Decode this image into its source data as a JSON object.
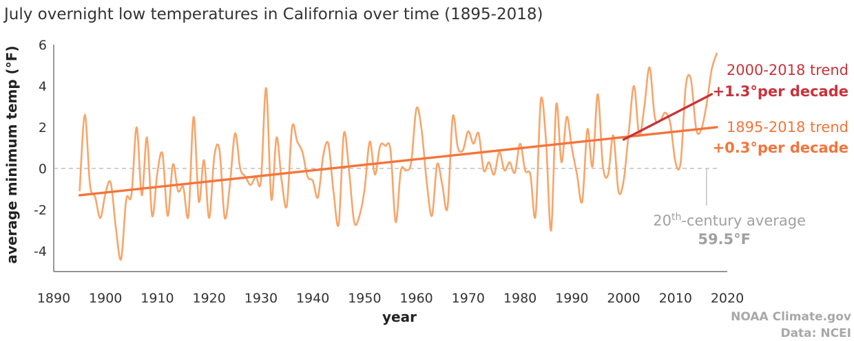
{
  "chart_data": {
    "type": "line",
    "title": "July overnight low temperatures in California over time (1895-2018)",
    "xlabel": "year",
    "ylabel": "average minimum temp (°F)",
    "xlim": [
      1890,
      2020
    ],
    "ylim": [
      -5,
      6
    ],
    "x_ticks": [
      1890,
      1900,
      1910,
      1920,
      1930,
      1940,
      1950,
      1960,
      1970,
      1980,
      1990,
      2000,
      2010,
      2020
    ],
    "y_ticks": [
      -4,
      -2,
      0,
      2,
      4,
      6
    ],
    "grid": false,
    "baseline": {
      "y": 0,
      "style": "dashed"
    },
    "colors": {
      "anomaly": "#f9a469",
      "long_trend": "#f4743b",
      "recent_trend": "#c9323a",
      "baseline": "#b3b3b3",
      "axis": "#555555",
      "credit": "#a8a8a8"
    },
    "series": [
      {
        "x": [
          1895,
          1896,
          1897,
          1898,
          1899,
          1900,
          1901,
          1902,
          1903,
          1904,
          1905,
          1906,
          1907,
          1908,
          1909,
          1910,
          1911,
          1912,
          1913,
          1914,
          1915,
          1916,
          1917,
          1918,
          1919,
          1920,
          1921,
          1922,
          1923,
          1924,
          1925,
          1926,
          1927,
          1928,
          1929,
          1930,
          1931,
          1932,
          1933,
          1934,
          1935,
          1936,
          1937,
          1938,
          1939,
          1940,
          1941,
          1942,
          1943,
          1944,
          1945,
          1946,
          1947,
          1948,
          1949,
          1950,
          1951,
          1952,
          1953,
          1954,
          1955,
          1956,
          1957,
          1958,
          1959,
          1960,
          1961,
          1962,
          1963,
          1964,
          1965,
          1966,
          1967,
          1968,
          1969,
          1970,
          1971,
          1972,
          1973,
          1974,
          1975,
          1976,
          1977,
          1978,
          1979,
          1980,
          1981,
          1982,
          1983,
          1984,
          1985,
          1986,
          1987,
          1988,
          1989,
          1990,
          1991,
          1992,
          1993,
          1994,
          1995,
          1996,
          1997,
          1998,
          1999,
          2000,
          2001,
          2002,
          2003,
          2004,
          2005,
          2006,
          2007,
          2008,
          2009,
          2010,
          2011,
          2012,
          2013,
          2014,
          2015,
          2016,
          2017,
          2018
        ],
        "values": [
          -1.1,
          2.6,
          -0.8,
          -1.4,
          -2.4,
          -1.2,
          -0.7,
          -2.9,
          -4.4,
          -1.5,
          -1.3,
          2.0,
          -1.3,
          1.5,
          -2.3,
          -0.2,
          0.7,
          -2.3,
          0.2,
          -1.1,
          -0.9,
          -2.3,
          2.5,
          -1.6,
          0.4,
          -2.4,
          0.6,
          0.9,
          -2.4,
          -0.8,
          1.7,
          0.0,
          -0.4,
          -0.8,
          -0.4,
          -0.6,
          3.9,
          -1.5,
          1.5,
          -0.6,
          -1.8,
          2.0,
          1.3,
          0.8,
          -0.4,
          -0.6,
          -1.4,
          0.6,
          1.2,
          -1.1,
          -2.7,
          1.7,
          -0.1,
          -2.6,
          -2.3,
          -1.0,
          1.3,
          -0.3,
          1.1,
          1.1,
          0.9,
          -2.6,
          -0.1,
          -0.1,
          0.3,
          2.9,
          1.9,
          -0.7,
          -2.3,
          0.2,
          -0.8,
          -1.9,
          2.5,
          1.0,
          0.9,
          1.8,
          1.2,
          1.7,
          -0.1,
          0.3,
          -0.3,
          0.8,
          -0.1,
          0.3,
          -0.2,
          1.2,
          -0.1,
          -0.3,
          -2.3,
          3.3,
          1.4,
          -3.0,
          3.1,
          0.3,
          2.5,
          1.0,
          -0.3,
          -1.6,
          1.9,
          0.1,
          3.6,
          0.1,
          -0.3,
          1.6,
          -1.1,
          -0.6,
          1.8,
          4.0,
          1.6,
          3.0,
          4.9,
          2.5,
          2.3,
          2.7,
          2.2,
          0.3,
          0.3,
          4.0,
          4.3,
          1.9,
          1.9,
          3.1,
          4.8,
          5.6
        ]
      }
    ],
    "trends": [
      {
        "label": "1895-2018 trend",
        "rate": "+0.3°per decade",
        "from": [
          1895,
          -1.3
        ],
        "to": [
          2018,
          2.0
        ]
      },
      {
        "label": "2000-2018 trend",
        "rate": "+1.3°per decade",
        "from": [
          2000,
          1.4
        ],
        "to": [
          2017,
          3.6
        ]
      }
    ],
    "annotation": {
      "sup_prefix": "20",
      "sup": "th",
      "text": "-century average",
      "value": "59.5°F",
      "leader_x": 2016
    }
  },
  "credits": {
    "source": "NOAA Climate.gov",
    "data": "Data: NCEI"
  }
}
